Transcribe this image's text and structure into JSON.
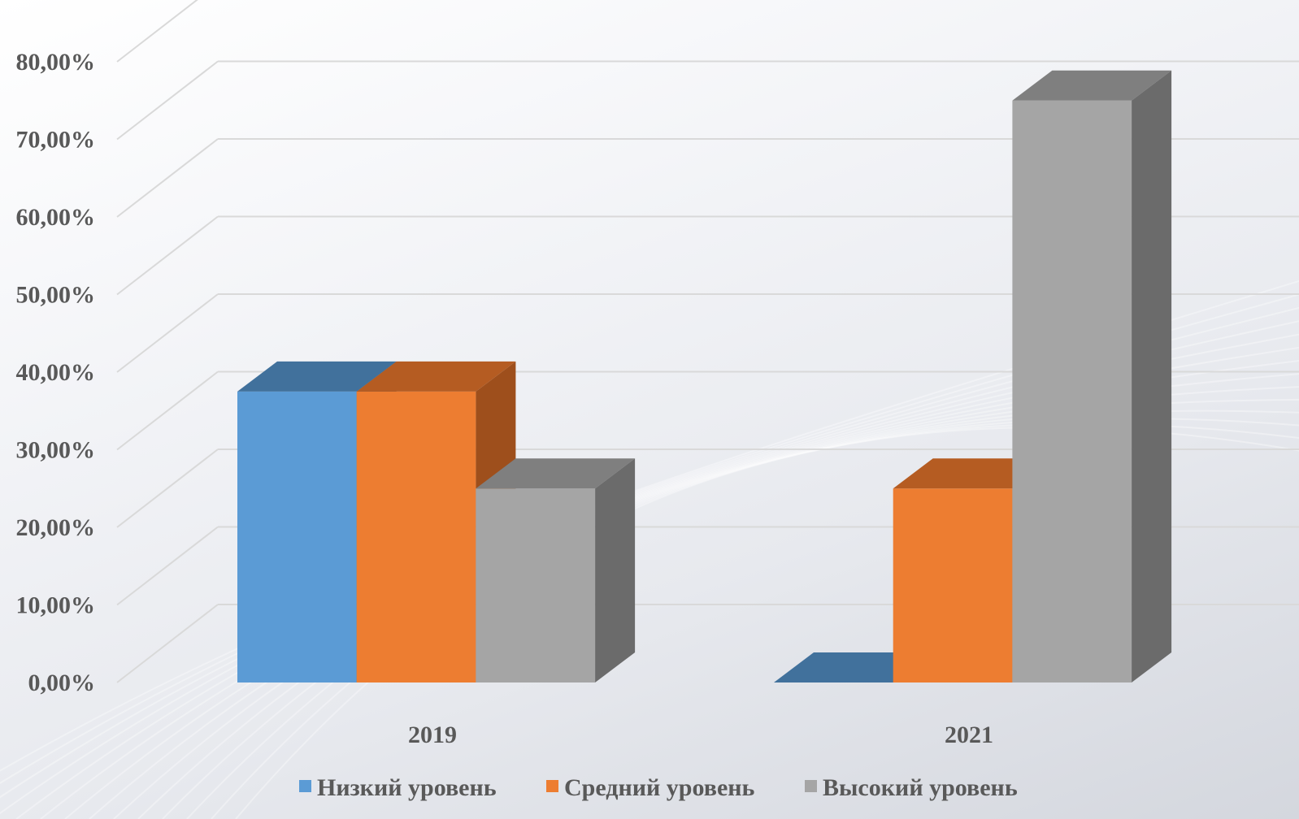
{
  "chart_data": {
    "type": "bar",
    "title": "",
    "xlabel": "",
    "ylabel": "",
    "ylim": [
      0,
      0.8
    ],
    "y_ticks": [
      "0,00%",
      "10,00%",
      "20,00%",
      "30,00%",
      "40,00%",
      "50,00%",
      "60,00%",
      "70,00%",
      "80,00%"
    ],
    "categories": [
      "2019",
      "2021"
    ],
    "series": [
      {
        "name": "Низкий уровень",
        "values": [
          0.375,
          0.0
        ],
        "color": "#5B9BD5",
        "top_color": "#41719C",
        "side_color": "#31587A"
      },
      {
        "name": "Средний уровень",
        "values": [
          0.375,
          0.25
        ],
        "color": "#ED7D31",
        "top_color": "#B55C22",
        "side_color": "#9E4F1C"
      },
      {
        "name": "Высокий уровень",
        "values": [
          0.25,
          0.75
        ],
        "color": "#A5A5A5",
        "top_color": "#7F7F7F",
        "side_color": "#6B6B6B"
      }
    ],
    "grid": true,
    "legend_position": "bottom",
    "style": "3d-clustered-column"
  }
}
